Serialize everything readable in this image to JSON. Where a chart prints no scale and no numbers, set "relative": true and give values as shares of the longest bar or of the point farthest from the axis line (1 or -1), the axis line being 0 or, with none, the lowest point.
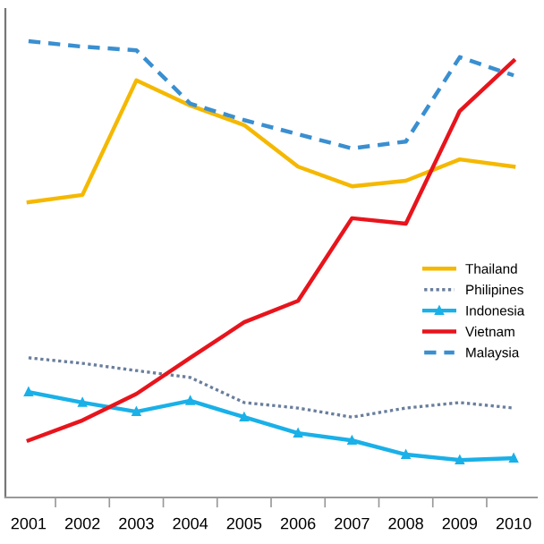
{
  "chart_data": {
    "type": "line",
    "relative": true,
    "categories": [
      "2001",
      "2002",
      "2003",
      "2004",
      "2005",
      "2006",
      "2007",
      "2008",
      "2009",
      "2010"
    ],
    "series": [
      {
        "name": "Thailand",
        "color": "#f5b800",
        "line_style": "solid",
        "values": [
          0.647,
          0.663,
          0.914,
          0.859,
          0.816,
          0.725,
          0.682,
          0.694,
          0.741,
          0.725
        ]
      },
      {
        "name": "Philipines",
        "color": "#6a7e9c",
        "line_style": "dotted",
        "values": [
          0.306,
          0.294,
          0.278,
          0.263,
          0.208,
          0.196,
          0.176,
          0.196,
          0.208,
          0.196
        ]
      },
      {
        "name": "Indonesia",
        "color": "#1ab0e8",
        "line_style": "solid",
        "marker": "triangle",
        "values": [
          0.231,
          0.208,
          0.188,
          0.212,
          0.176,
          0.141,
          0.125,
          0.094,
          0.082,
          0.086
        ]
      },
      {
        "name": "Vietnam",
        "color": "#e8141c",
        "line_style": "solid",
        "values": [
          0.125,
          0.169,
          0.227,
          0.306,
          0.384,
          0.431,
          0.612,
          0.6,
          0.847,
          0.957
        ]
      },
      {
        "name": "Malaysia",
        "color": "#3a8fd0",
        "line_style": "dashed",
        "values": [
          1.0,
          0.988,
          0.98,
          0.863,
          0.827,
          0.796,
          0.765,
          0.78,
          0.965,
          0.925
        ]
      }
    ],
    "legend": "center right"
  }
}
